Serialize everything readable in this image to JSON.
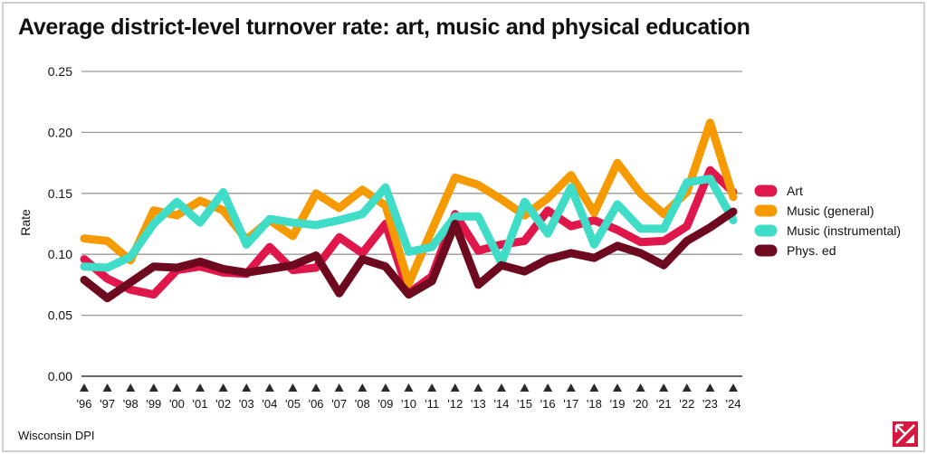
{
  "title": "Average district-level turnover rate: art, music and physical education",
  "source": "Wisconsin DPI",
  "chart_data": {
    "type": "line",
    "title": "Average district-level turnover rate: art, music and physical education",
    "ylabel": "Rate",
    "xlabel": "",
    "ylim": [
      0,
      0.25
    ],
    "yticks": [
      "0.00",
      "0.05",
      "0.10",
      "0.15",
      "0.20",
      "0.25"
    ],
    "ytick_values": [
      0,
      0.05,
      0.1,
      0.15,
      0.2,
      0.25
    ],
    "grid": true,
    "legend_position": "right",
    "categories": [
      "'96",
      "'97",
      "'98",
      "'99",
      "'00",
      "'01",
      "'02",
      "'03",
      "'04",
      "'05",
      "'06",
      "'07",
      "'08",
      "'09",
      "'10",
      "'11",
      "'12",
      "'13",
      "'14",
      "'15",
      "'16",
      "'17",
      "'18",
      "'19",
      "'20",
      "'21",
      "'22",
      "'23",
      "'24"
    ],
    "series": [
      {
        "name": "Art",
        "color": "#e0174b",
        "values": [
          0.096,
          0.08,
          0.071,
          0.067,
          0.087,
          0.09,
          0.085,
          0.084,
          0.106,
          0.087,
          0.089,
          0.114,
          0.101,
          0.125,
          0.068,
          0.082,
          0.133,
          0.103,
          0.108,
          0.111,
          0.136,
          0.123,
          0.128,
          0.12,
          0.11,
          0.111,
          0.123,
          0.169,
          0.151
        ]
      },
      {
        "name": "Music (general)",
        "color": "#f59a00",
        "values": [
          0.113,
          0.111,
          0.095,
          0.136,
          0.132,
          0.144,
          0.136,
          0.112,
          0.128,
          0.115,
          0.15,
          0.138,
          0.153,
          0.14,
          0.076,
          0.12,
          0.163,
          0.157,
          0.145,
          0.132,
          0.146,
          0.165,
          0.134,
          0.175,
          0.15,
          0.133,
          0.151,
          0.208,
          0.147
        ]
      },
      {
        "name": "Music (instrumental)",
        "color": "#3fdcc8",
        "values": [
          0.09,
          0.089,
          0.098,
          0.125,
          0.143,
          0.126,
          0.151,
          0.108,
          0.129,
          0.126,
          0.124,
          0.128,
          0.133,
          0.155,
          0.102,
          0.106,
          0.131,
          0.131,
          0.093,
          0.143,
          0.117,
          0.155,
          0.108,
          0.141,
          0.121,
          0.121,
          0.159,
          0.162,
          0.128
        ]
      },
      {
        "name": "Phys. ed",
        "color": "#6e0a1f",
        "values": [
          0.079,
          0.064,
          0.077,
          0.09,
          0.089,
          0.094,
          0.088,
          0.085,
          0.088,
          0.091,
          0.099,
          0.068,
          0.096,
          0.09,
          0.067,
          0.078,
          0.125,
          0.075,
          0.091,
          0.086,
          0.096,
          0.101,
          0.097,
          0.107,
          0.101,
          0.091,
          0.111,
          0.122,
          0.135
        ]
      }
    ]
  }
}
